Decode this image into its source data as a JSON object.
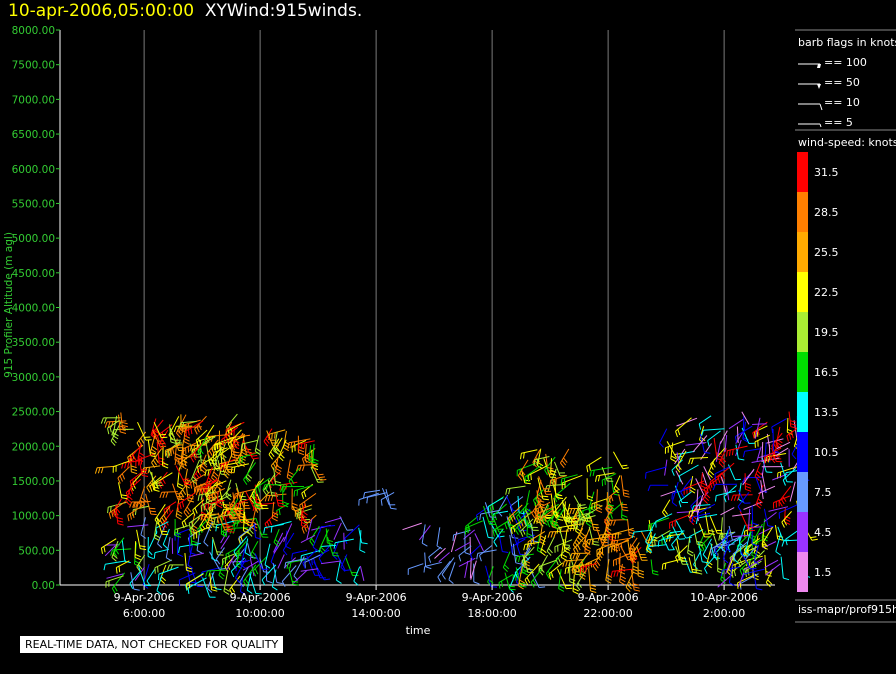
{
  "title": {
    "timestamp": "10-apr-2006,05:00:00",
    "name": "XYWind:915winds."
  },
  "footer": "REAL-TIME DATA, NOT CHECKED FOR QUALITY",
  "chart_data": {
    "type": "scatter",
    "ylabel": "915 Profiler Altitude (m agl)",
    "xlabel": "time",
    "ylim": [
      0,
      8000
    ],
    "y_ticks": [
      "0.00",
      "500.00",
      "1000.00",
      "1500.00",
      "2000.00",
      "2500.00",
      "3000.00",
      "3500.00",
      "4000.00",
      "4500.00",
      "5000.00",
      "5500.00",
      "6000.00",
      "6500.00",
      "7000.00",
      "7500.00",
      "8000.00"
    ],
    "x_ticks": [
      {
        "date": "9-Apr-2006",
        "time": "6:00:00"
      },
      {
        "date": "9-Apr-2006",
        "time": "10:00:00"
      },
      {
        "date": "9-Apr-2006",
        "time": "14:00:00"
      },
      {
        "date": "9-Apr-2006",
        "time": "18:00:00"
      },
      {
        "date": "9-Apr-2006",
        "time": "22:00:00"
      },
      {
        "date": "10-Apr-2006",
        "time": "2:00:00"
      }
    ],
    "grid": "vertical",
    "barb_legend": {
      "title": "barb flags in knots",
      "items": [
        "== 100",
        "== 50",
        "== 10",
        "== 5"
      ]
    },
    "speed_legend": {
      "title": "wind-speed: knots",
      "levels": [
        {
          "label": "31.5",
          "color": "#ff0000"
        },
        {
          "label": "28.5",
          "color": "#ff7f00"
        },
        {
          "label": "25.5",
          "color": "#ffaa00"
        },
        {
          "label": "22.5",
          "color": "#ffff00"
        },
        {
          "label": "19.5",
          "color": "#aaee33"
        },
        {
          "label": "16.5",
          "color": "#00dd00"
        },
        {
          "label": "13.5",
          "color": "#00ffff"
        },
        {
          "label": "10.5",
          "color": "#0000ff"
        },
        {
          "label": "7.5",
          "color": "#6699ff"
        },
        {
          "label": "4.5",
          "color": "#9933ff"
        },
        {
          "label": "1.5",
          "color": "#ee88ee"
        }
      ]
    },
    "source_label": "iss-mapr/prof915h",
    "wind_clusters": [
      {
        "x_from": 5.0,
        "x_to": 9.5,
        "y_from": 1000,
        "y_to": 2500,
        "speeds": [
          19.5,
          22.5,
          25.5,
          28.5,
          31.5
        ]
      },
      {
        "x_from": 5.0,
        "x_to": 10.0,
        "y_from": 100,
        "y_to": 1000,
        "speeds": [
          4.5,
          7.5,
          10.5,
          13.5,
          16.5,
          19.5,
          22.5
        ]
      },
      {
        "x_from": 8.0,
        "x_to": 12.0,
        "y_from": 1000,
        "y_to": 2300,
        "speeds": [
          16.5,
          19.5,
          22.5,
          25.5,
          28.5,
          31.5
        ]
      },
      {
        "x_from": 9.5,
        "x_to": 13.5,
        "y_from": 200,
        "y_to": 1000,
        "speeds": [
          4.5,
          7.5,
          10.5,
          13.5,
          16.5
        ]
      },
      {
        "x_from": 13.8,
        "x_to": 14.7,
        "y_from": 1300,
        "y_to": 1400,
        "speeds": [
          7.5
        ]
      },
      {
        "x_from": 15.5,
        "x_to": 17.5,
        "y_from": 300,
        "y_to": 900,
        "speeds": [
          1.5,
          4.5,
          7.5
        ]
      },
      {
        "x_from": 17.5,
        "x_to": 19.5,
        "y_from": 150,
        "y_to": 1300,
        "speeds": [
          7.5,
          10.5,
          13.5,
          16.5
        ]
      },
      {
        "x_from": 19.0,
        "x_to": 21.5,
        "y_from": 150,
        "y_to": 1200,
        "speeds": [
          16.5,
          19.5,
          22.5,
          25.5
        ]
      },
      {
        "x_from": 21.0,
        "x_to": 23.2,
        "y_from": 150,
        "y_to": 1000,
        "speeds": [
          25.5,
          28.5,
          31.5
        ]
      },
      {
        "x_from": 19.0,
        "x_to": 22.5,
        "y_from": 1000,
        "y_to": 2000,
        "speeds": [
          16.5,
          19.5,
          22.5,
          28.5
        ]
      },
      {
        "x_from": 23.3,
        "x_to": 27.5,
        "y_from": 300,
        "y_to": 1000,
        "speeds": [
          13.5,
          16.5,
          19.5,
          22.5
        ]
      },
      {
        "x_from": 26.0,
        "x_to": 28.8,
        "y_from": 150,
        "y_to": 900,
        "speeds": [
          4.5,
          7.5,
          10.5,
          13.5,
          22.5
        ]
      },
      {
        "x_from": 24.0,
        "x_to": 28.8,
        "y_from": 1000,
        "y_to": 2500,
        "speeds": [
          1.5,
          4.5,
          10.5,
          13.5,
          22.5,
          31.5
        ]
      }
    ]
  }
}
